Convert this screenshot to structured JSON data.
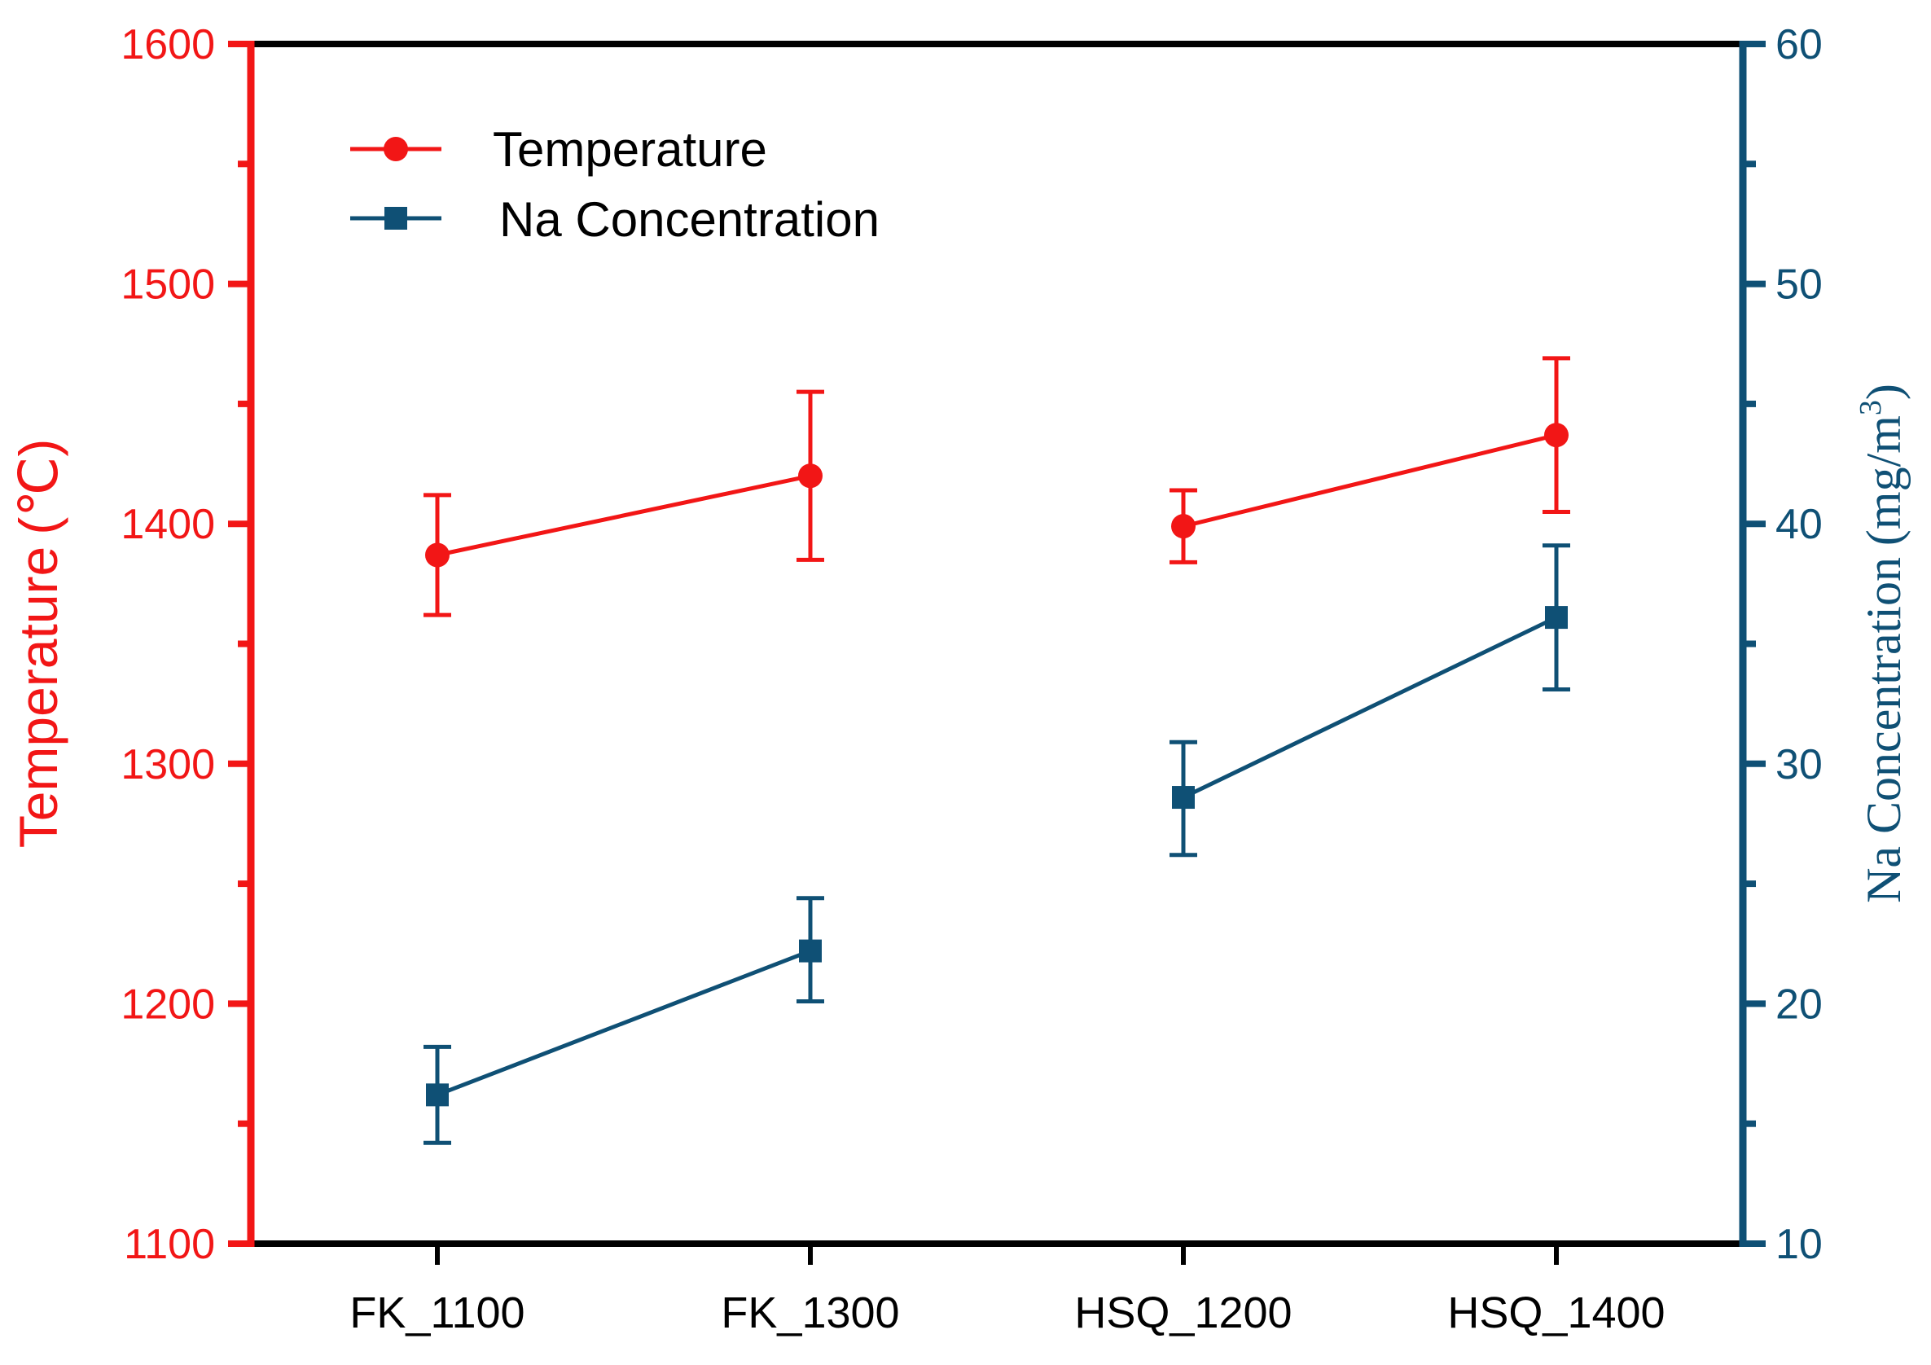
{
  "chart_data": {
    "type": "line",
    "categories": [
      "FK_1100",
      "FK_1300",
      "HSQ_1200",
      "HSQ_1400"
    ],
    "y_left": {
      "label_main": "Temperature",
      "label_unit": "(℃)",
      "range": [
        1100,
        1600
      ],
      "ticks": [
        "1100",
        "1200",
        "1300",
        "1400",
        "1500",
        "1600"
      ],
      "color": "#f21616"
    },
    "y_right": {
      "label_main": "Na Concentration",
      "label_unit_pre": "(mg/m",
      "label_unit_sup": "3",
      "label_unit_post": ")",
      "range": [
        10,
        60
      ],
      "ticks": [
        "10",
        "20",
        "30",
        "40",
        "50",
        "60"
      ],
      "color": "#0f5075"
    },
    "series": [
      {
        "name": "Temperature",
        "axis": "left",
        "color": "#f21616",
        "marker": "circle",
        "segments": [
          [
            0,
            1
          ],
          [
            2,
            3
          ]
        ],
        "values": [
          1387,
          1420,
          1399,
          1437
        ],
        "err_low": [
          1362,
          1385,
          1384,
          1405
        ],
        "err_high": [
          1412,
          1455,
          1414,
          1469
        ]
      },
      {
        "name": "Na Concentration",
        "axis": "right",
        "color": "#0f5075",
        "marker": "square",
        "segments": [
          [
            0,
            1
          ],
          [
            2,
            3
          ]
        ],
        "values": [
          16.2,
          22.2,
          28.6,
          36.1
        ],
        "err_low": [
          14.2,
          20.1,
          26.2,
          33.1
        ],
        "err_high": [
          18.2,
          24.4,
          30.9,
          39.1
        ]
      }
    ],
    "legend": {
      "position": "top-left",
      "entries": [
        "Temperature",
        "Na Concentration"
      ]
    },
    "grid": false
  }
}
